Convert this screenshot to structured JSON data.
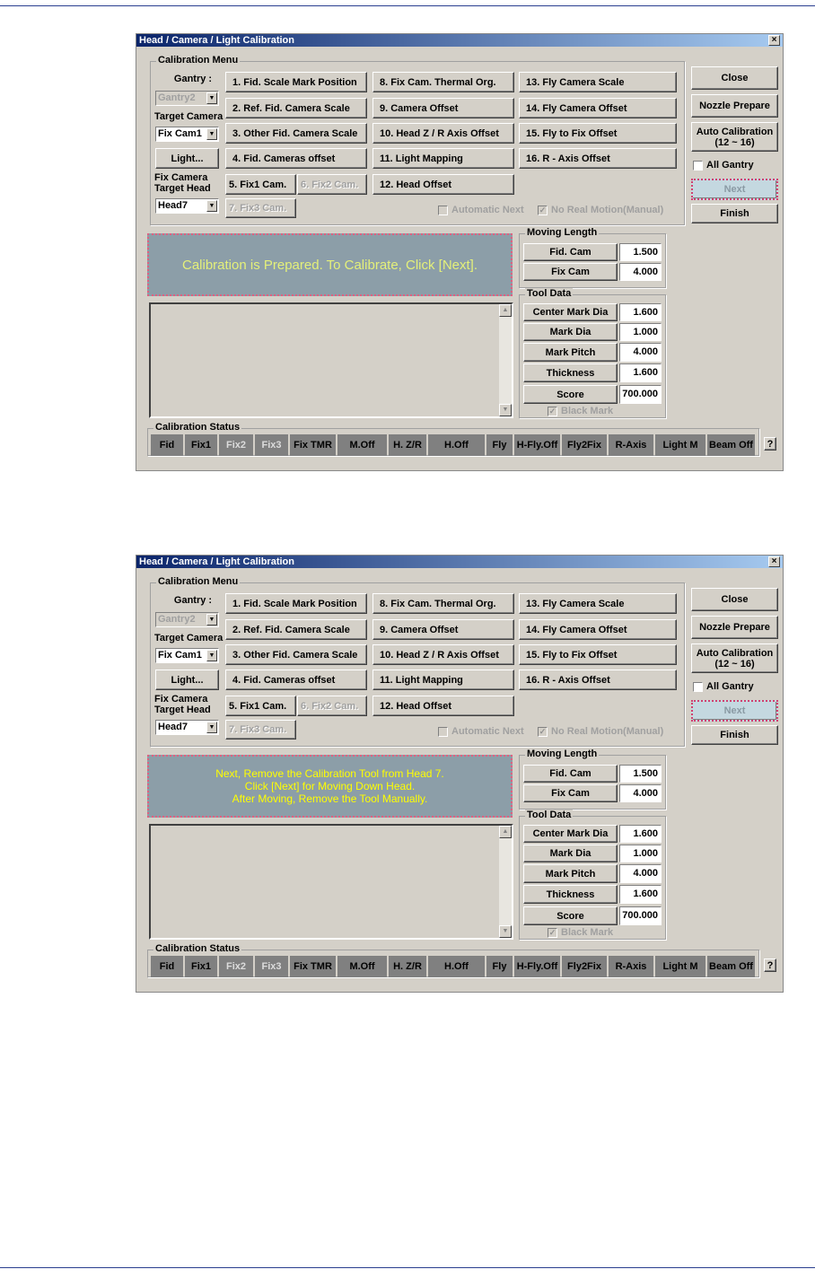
{
  "dialog": {
    "title": "Head / Camera / Light Calibration",
    "close_x": "×",
    "menu_group": "Calibration Menu",
    "gantry_label": "Gantry :",
    "gantry_value": "Gantry2",
    "target_camera_label": "Target Camera",
    "target_camera_value": "Fix Cam1",
    "light_button": "Light...",
    "fix_camera_label": "Fix Camera",
    "target_head_label": "Target Head",
    "head_value": "Head7",
    "menu_buttons": [
      {
        "label": "1. Fid. Scale Mark Position",
        "enabled": true
      },
      {
        "label": "2. Ref. Fid. Camera Scale",
        "enabled": true
      },
      {
        "label": "3. Other Fid. Camera Scale",
        "enabled": true
      },
      {
        "label": "4. Fid. Cameras offset",
        "enabled": true
      },
      {
        "label": "5. Fix1 Cam.",
        "enabled": true
      },
      {
        "label": "6. Fix2 Cam.",
        "enabled": false
      },
      {
        "label": "7. Fix3 Cam.",
        "enabled": false
      },
      {
        "label": "8. Fix Cam. Thermal Org.",
        "enabled": true
      },
      {
        "label": "9. Camera Offset",
        "enabled": true
      },
      {
        "label": "10. Head Z / R Axis Offset",
        "enabled": true
      },
      {
        "label": "11. Light Mapping",
        "enabled": true
      },
      {
        "label": "12. Head Offset",
        "enabled": true
      },
      {
        "label": "13. Fly Camera Scale",
        "enabled": true
      },
      {
        "label": "14. Fly Camera Offset",
        "enabled": true
      },
      {
        "label": "15. Fly to Fix Offset",
        "enabled": true
      },
      {
        "label": "16. R - Axis Offset",
        "enabled": true
      }
    ],
    "automatic_next": {
      "label": "Automatic Next",
      "checked": false,
      "enabled": false
    },
    "no_real_motion": {
      "label": "No Real Motion(Manual)",
      "checked": true,
      "enabled": false
    },
    "close_button": "Close",
    "nozzle_prepare_button": "Nozzle Prepare",
    "auto_calibration_button": [
      "Auto Calibration",
      "(12 ~ 16)"
    ],
    "all_gantry": {
      "label": "All Gantry",
      "checked": false
    },
    "next_button": "Next",
    "finish_button": "Finish",
    "moving_length": {
      "title": "Moving Length",
      "rows": [
        {
          "label": "Fid. Cam",
          "value": "1.500"
        },
        {
          "label": "Fix Cam",
          "value": "4.000"
        }
      ]
    },
    "tool_data": {
      "title": "Tool Data",
      "rows": [
        {
          "label": "Center Mark Dia",
          "value": "1.600"
        },
        {
          "label": "Mark Dia",
          "value": "1.000"
        },
        {
          "label": "Mark Pitch",
          "value": "4.000"
        },
        {
          "label": "Thickness",
          "value": "1.600"
        },
        {
          "label": "Score",
          "value": "700.000"
        }
      ],
      "black_mark": {
        "label": "Black Mark",
        "checked": true,
        "enabled": false
      }
    },
    "status": {
      "title": "Calibration Status",
      "cells": [
        {
          "label": "Fid",
          "enabled": true
        },
        {
          "label": "Fix1",
          "enabled": true
        },
        {
          "label": "Fix2",
          "enabled": false
        },
        {
          "label": "Fix3",
          "enabled": false
        },
        {
          "label": "Fix TMR",
          "enabled": true
        },
        {
          "label": "M.Off",
          "enabled": true
        },
        {
          "label": "H. Z/R",
          "enabled": true
        },
        {
          "label": "H.Off",
          "enabled": true
        },
        {
          "label": "Fly",
          "enabled": true
        },
        {
          "label": "H-Fly.Off",
          "enabled": true
        },
        {
          "label": "Fly2Fix",
          "enabled": true
        },
        {
          "label": "R-Axis",
          "enabled": true
        },
        {
          "label": "Light M",
          "enabled": true
        },
        {
          "label": "Beam Off",
          "enabled": true
        }
      ],
      "help_button": "?"
    }
  },
  "screens": [
    {
      "message": [
        "Calibration is Prepared. To Calibrate, Click [Next]."
      ],
      "message_color": "#e4f07a"
    },
    {
      "message": [
        "Next, Remove the Calibration Tool from Head 7.",
        "Click [Next] for Moving Down Head.",
        "After Moving, Remove the Tool Manually."
      ],
      "message_color": "#ffff00"
    }
  ],
  "colors": {
    "dialog_bg": "#d4d0c8",
    "title_bar": "#0a246a",
    "message_bg": "#8c9ea8",
    "status_cell": "#808080",
    "rule": "#2a3f8f"
  }
}
